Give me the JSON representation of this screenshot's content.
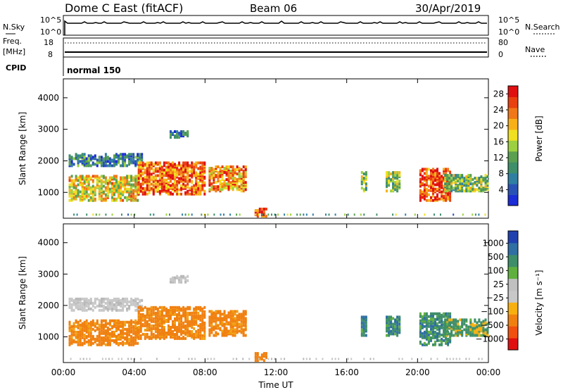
{
  "header": {
    "station": "Dome C East (fitACF)",
    "beam": "Beam 06",
    "date": "30/Apr/2019"
  },
  "strip": {
    "nsky_label": "N.Sky",
    "nsky_ticks": [
      "10^5",
      "10^0"
    ],
    "nsearch_label": "N.Search",
    "nsearch_ticks": [
      "10^5",
      "10^0"
    ],
    "freq_label": "Freq.",
    "freq_unit": "[MHz]",
    "freq_ticks": [
      "18",
      "8"
    ],
    "nave_label": "Nave",
    "nave_ticks": [
      "80",
      "0"
    ],
    "cpid_label": "CPID",
    "cpid_value": "normal 150"
  },
  "colors": {
    "power_scale": [
      "#1c2cd6",
      "#2a52b4",
      "#2f7fa3",
      "#3f8f6a",
      "#5aa050",
      "#9cd040",
      "#f0e020",
      "#f8b018",
      "#f07818",
      "#e84010",
      "#e01010"
    ],
    "velocity_scale": [
      "#e01010",
      "#f05010",
      "#f08010",
      "#f8b010",
      "#c8c8c8",
      "#c0c0c0",
      "#60b040",
      "#3e8e6a",
      "#2f6fa3",
      "#2040b0"
    ]
  },
  "chart_data": [
    {
      "type": "heatmap",
      "name": "Power",
      "ylabel": "Slant Range [km]",
      "xlim": [
        "00:00",
        "24:00"
      ],
      "ylim": [
        180,
        4600
      ],
      "yticks": [
        "4000",
        "3000",
        "2000",
        "1000"
      ],
      "colorbar_label": "Power [dB]",
      "colorbar_ticks": [
        "28",
        "24",
        "20",
        "16",
        "12",
        "8",
        "4"
      ],
      "colorbar_range": [
        0,
        30
      ],
      "echo_regions": [
        {
          "t_start": 0.3,
          "t_end": 4.2,
          "r_min": 700,
          "r_max": 1500,
          "value": 18
        },
        {
          "t_start": 0.3,
          "t_end": 4.5,
          "r_min": 1800,
          "r_max": 2200,
          "value": 8
        },
        {
          "t_start": 4.2,
          "t_end": 8.0,
          "r_min": 900,
          "r_max": 1900,
          "value": 24
        },
        {
          "t_start": 8.2,
          "t_end": 10.3,
          "r_min": 1000,
          "r_max": 1800,
          "value": 22
        },
        {
          "t_start": 6.0,
          "t_end": 7.0,
          "r_min": 2700,
          "r_max": 2900,
          "value": 6
        },
        {
          "t_start": 10.8,
          "t_end": 11.4,
          "r_min": 200,
          "r_max": 450,
          "value": 26
        },
        {
          "t_start": 16.8,
          "t_end": 17.1,
          "r_min": 1000,
          "r_max": 1600,
          "value": 14
        },
        {
          "t_start": 18.2,
          "t_end": 19.0,
          "r_min": 1000,
          "r_max": 1600,
          "value": 14
        },
        {
          "t_start": 20.1,
          "t_end": 21.8,
          "r_min": 700,
          "r_max": 1700,
          "value": 26
        },
        {
          "t_start": 21.5,
          "t_end": 24.0,
          "r_min": 1000,
          "r_max": 1500,
          "value": 14
        }
      ]
    },
    {
      "type": "heatmap",
      "name": "Velocity",
      "ylabel": "Slant Range [km]",
      "xlabel": "Time UT",
      "xlim": [
        "00:00",
        "24:00"
      ],
      "ylim": [
        180,
        4600
      ],
      "xticks": [
        "00:00",
        "04:00",
        "08:00",
        "12:00",
        "16:00",
        "20:00",
        "00:00"
      ],
      "yticks": [
        "4000",
        "3000",
        "2000",
        "1000"
      ],
      "colorbar_label": "Velocity [m s⁻¹]",
      "colorbar_ticks": [
        "1000",
        "500",
        "100",
        "25",
        "−25",
        "−100",
        "−500",
        "−1000"
      ],
      "echo_regions": [
        {
          "t_start": 0.3,
          "t_end": 4.2,
          "r_min": 700,
          "r_max": 1500,
          "value": -300
        },
        {
          "t_start": 0.3,
          "t_end": 4.5,
          "r_min": 1800,
          "r_max": 2200,
          "value": 0
        },
        {
          "t_start": 4.2,
          "t_end": 8.0,
          "r_min": 900,
          "r_max": 1900,
          "value": -300
        },
        {
          "t_start": 8.2,
          "t_end": 10.3,
          "r_min": 1000,
          "r_max": 1800,
          "value": -300
        },
        {
          "t_start": 6.0,
          "t_end": 7.0,
          "r_min": 2700,
          "r_max": 2900,
          "value": 0
        },
        {
          "t_start": 10.8,
          "t_end": 11.4,
          "r_min": 200,
          "r_max": 450,
          "value": -300
        },
        {
          "t_start": 16.8,
          "t_end": 17.1,
          "r_min": 1000,
          "r_max": 1600,
          "value": 200
        },
        {
          "t_start": 18.2,
          "t_end": 19.0,
          "r_min": 1000,
          "r_max": 1600,
          "value": 200
        },
        {
          "t_start": 20.1,
          "t_end": 21.8,
          "r_min": 700,
          "r_max": 1700,
          "value": 200
        },
        {
          "t_start": 21.5,
          "t_end": 24.0,
          "r_min": 1000,
          "r_max": 1500,
          "value": 50
        }
      ]
    }
  ]
}
